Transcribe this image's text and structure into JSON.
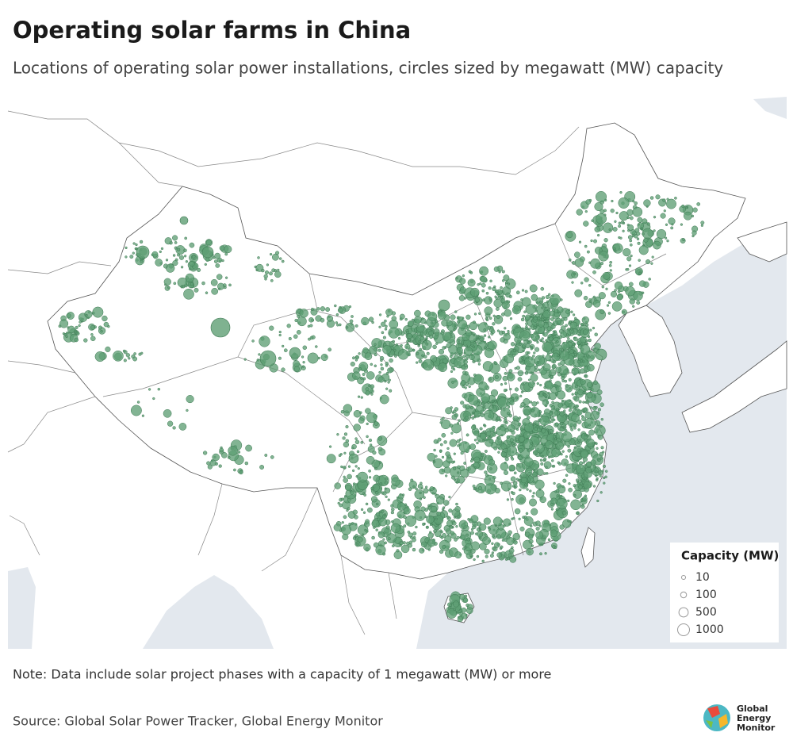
{
  "header": {
    "title": "Operating solar farms in China",
    "subtitle": "Locations of operating solar power installations, circles sized by megawatt (MW) capacity"
  },
  "legend": {
    "title": "Capacity (MW)",
    "sizes": [
      10,
      100,
      500,
      1000
    ]
  },
  "note": "Note: Data include solar project phases with a capacity of 1 megawatt (MW) or more",
  "source": "Source: Global Solar Power Tracker, Global Energy Monitor",
  "logo": {
    "lines": [
      "Global",
      "Energy",
      "Monitor"
    ]
  }
}
